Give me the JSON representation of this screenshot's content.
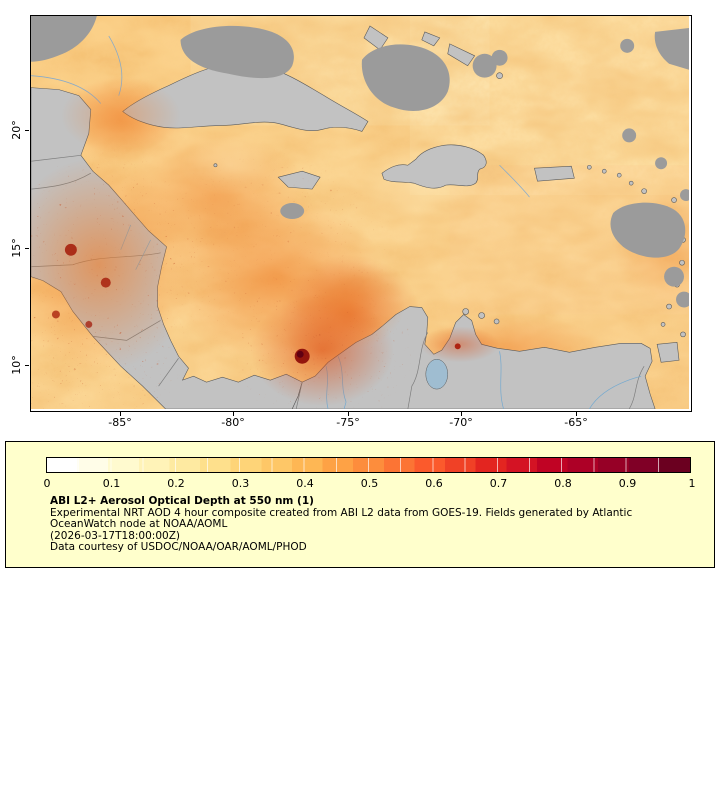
{
  "map": {
    "x_tick_labels": [
      "-85°",
      "-80°",
      "-75°",
      "-70°",
      "-65°"
    ],
    "y_tick_labels": [
      "20°",
      "15°",
      "10°"
    ]
  },
  "legend": {
    "tick_labels": [
      "0",
      "0.1",
      "0.2",
      "0.3",
      "0.4",
      "0.5",
      "0.6",
      "0.7",
      "0.8",
      "0.9",
      "1"
    ],
    "title": "ABI L2+ Aerosol Optical Depth at 550 nm (1)",
    "description_line1": "Experimental NRT AOD 4 hour composite created from ABI L2 data from GOES-19. Fields generated by Atlantic",
    "description_line2": "OceanWatch node at NOAA/AOML",
    "timestamp": "(2026-03-17T18:00:00Z)",
    "credit": "Data courtesy of USDOC/NOAA/OAR/AOML/PHOD"
  },
  "colors": {
    "legend_background": "#ffffcc",
    "land": "#c2c2c2",
    "cloud_no_data": "#9b9b9b",
    "ocean_field_base": "#fbd28e",
    "colormap": [
      "#ffffff",
      "#fffde8",
      "#fffacf",
      "#fff3b8",
      "#feeaa1",
      "#fee08c",
      "#fed478",
      "#fec767",
      "#feb754",
      "#fea245",
      "#fd8d3c",
      "#fc7434",
      "#fb5a2c",
      "#f04126",
      "#e32520",
      "#d41324",
      "#c00324",
      "#ad0026",
      "#960026",
      "#800026",
      "#6b0020"
    ]
  },
  "chart_data": {
    "type": "heatmap",
    "title": "ABI L2+ Aerosol Optical Depth at 550 nm (1)",
    "variable": "Aerosol Optical Depth at 550 nm",
    "colorbar": {
      "range": [
        0,
        1
      ],
      "tick_values": [
        0,
        0.1,
        0.2,
        0.3,
        0.4,
        0.5,
        0.6,
        0.7,
        0.8,
        0.9,
        1
      ],
      "orientation": "horizontal"
    },
    "axes": {
      "x_tick_labels": [
        "-85°",
        "-80°",
        "-75°",
        "-70°",
        "-65°"
      ],
      "y_tick_labels": [
        "20°",
        "15°",
        "10°"
      ]
    },
    "legend_position": "bottom"
  }
}
